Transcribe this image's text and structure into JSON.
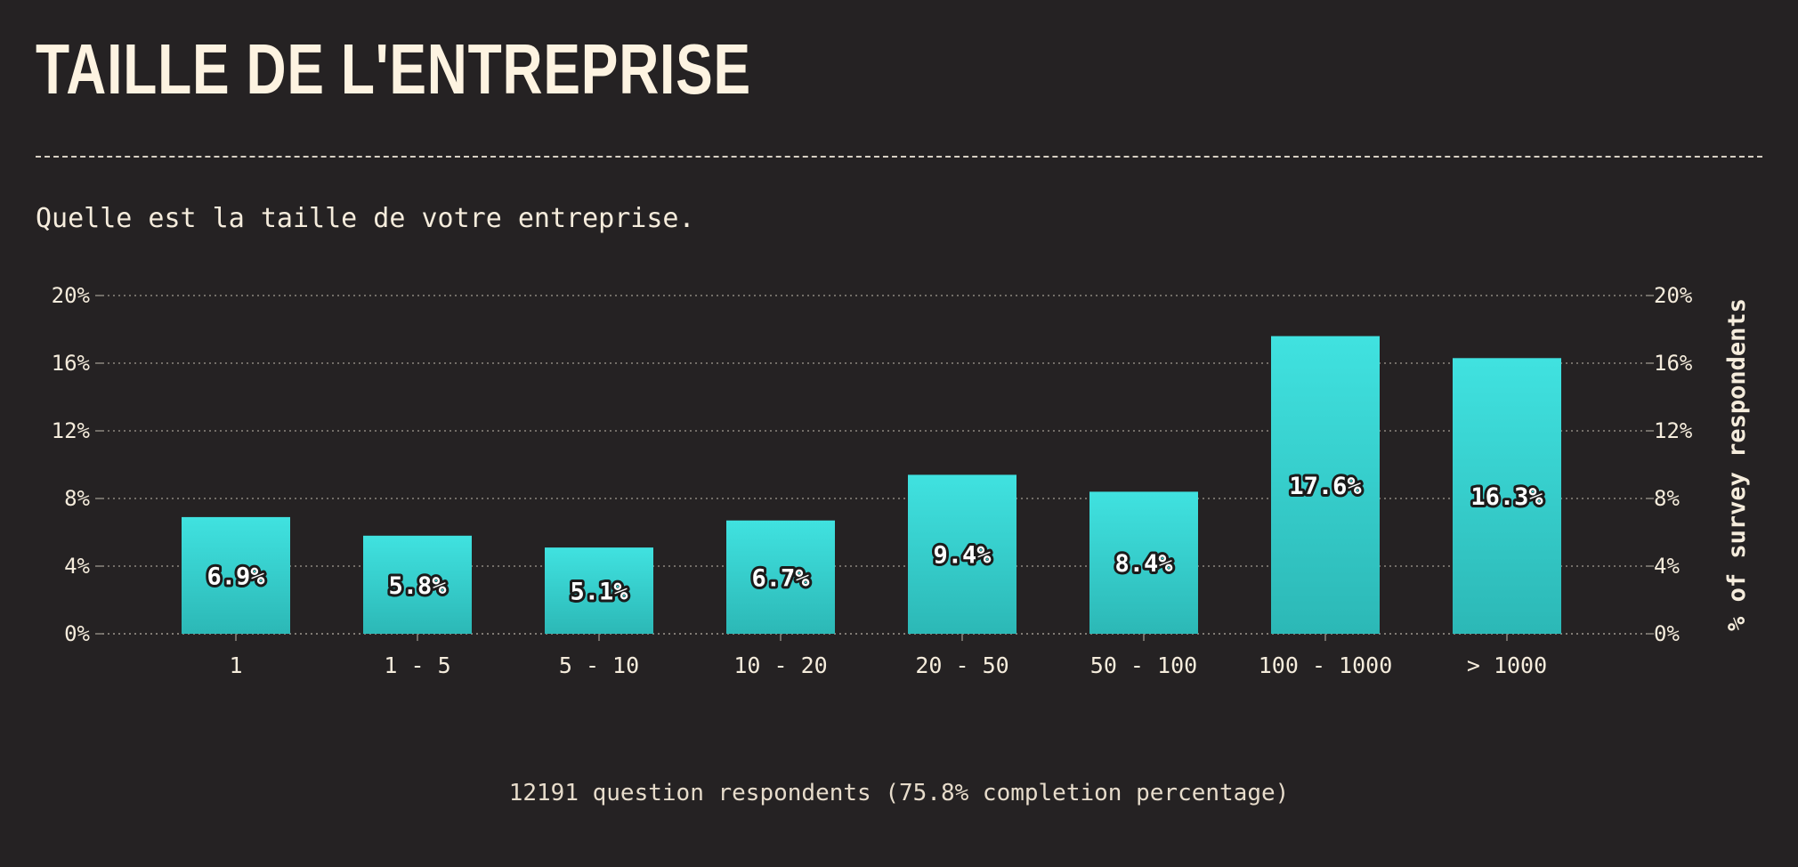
{
  "header": {
    "title": "TAILLE DE L'ENTREPRISE",
    "question": "Quelle est la taille de votre entreprise."
  },
  "footer": {
    "note": "12191 question respondents (75.8% completion percentage)"
  },
  "colors": {
    "background": "#252223",
    "bar_top": "#40e2e0",
    "bar_bottom": "#2cb8b6",
    "text": "#f5ecdc",
    "grid": "#8d8780"
  },
  "chart_data": {
    "type": "bar",
    "categories": [
      "1",
      "1 - 5",
      "5 - 10",
      "10 - 20",
      "20 - 50",
      "50 - 100",
      "100 - 1000",
      "> 1000"
    ],
    "values": [
      6.9,
      5.8,
      5.1,
      6.7,
      9.4,
      8.4,
      17.6,
      16.3
    ],
    "data_labels": [
      "6.9%",
      "5.8%",
      "5.1%",
      "6.7%",
      "9.4%",
      "8.4%",
      "17.6%",
      "16.3%"
    ],
    "ylim": [
      0,
      20
    ],
    "yticks": [
      0,
      4,
      8,
      12,
      16,
      20
    ],
    "ytick_labels": [
      "0%",
      "4%",
      "8%",
      "12%",
      "16%",
      "20%"
    ],
    "ylabel": "% of survey respondents",
    "xlabel": "",
    "grid": true,
    "y_axes": "both"
  }
}
